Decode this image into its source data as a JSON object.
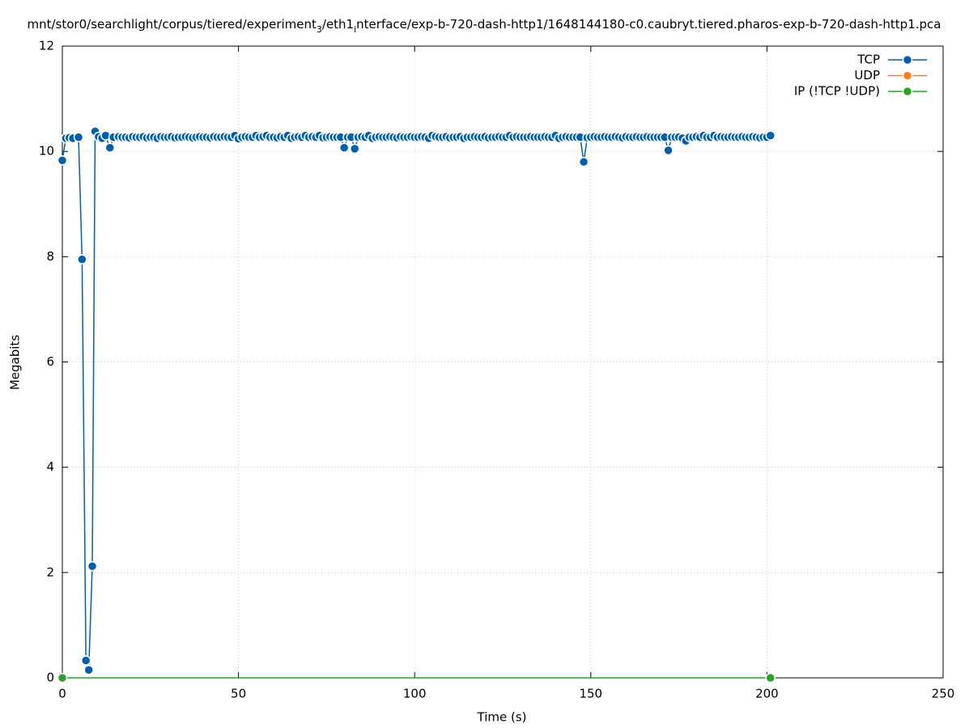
{
  "chart_data": {
    "type": "line",
    "title_parts": [
      "mnt/stor0/searchlight/corpus/tiered/experiment",
      "3",
      "/eth1",
      "i",
      "nterface/exp-b-720-dash-http1/1648144180-c0.caubryt.tiered.pharos-exp-b-720-dash-http1.pca"
    ],
    "xlabel": "Time (s)",
    "ylabel": "Megabits",
    "xlim": [
      0,
      250
    ],
    "xticks": [
      0,
      50,
      100,
      150,
      200,
      250
    ],
    "ylim": [
      0,
      12
    ],
    "yticks": [
      0,
      2,
      4,
      6,
      8,
      10,
      12
    ],
    "grid": true,
    "legend": "top-right",
    "series": [
      {
        "name": "TCP",
        "color": "#0060ad",
        "x": [
          0,
          1,
          2,
          3,
          4.6,
          5.6,
          6.7,
          7.5,
          8.5,
          9.3,
          10.3,
          11.3,
          12.3,
          13.5,
          14.5,
          16,
          17,
          18,
          19,
          20,
          21,
          22,
          23,
          24,
          25,
          26,
          27,
          28,
          29,
          30,
          31,
          32,
          33,
          34,
          35,
          36,
          37,
          38,
          39,
          40,
          41,
          42,
          43,
          44,
          45,
          46,
          47,
          48,
          49,
          50,
          51,
          52,
          53,
          54,
          55,
          56,
          57,
          58,
          59,
          60,
          61,
          62,
          63,
          64,
          65,
          66,
          67,
          68,
          69,
          70,
          71,
          72,
          73,
          74,
          75,
          76,
          77,
          78,
          79,
          80,
          81,
          82,
          83,
          84,
          85,
          86,
          87,
          88,
          89,
          90,
          91,
          92,
          93,
          94,
          95,
          96,
          97,
          98,
          99,
          100,
          101,
          102,
          103,
          104,
          105,
          106,
          107,
          108,
          109,
          110,
          111,
          112,
          113,
          114,
          115,
          116,
          117,
          118,
          119,
          120,
          121,
          122,
          123,
          124,
          125,
          126,
          127,
          128,
          129,
          130,
          131,
          132,
          133,
          134,
          135,
          136,
          137,
          138,
          139,
          140,
          141,
          142,
          143,
          144,
          145,
          146,
          147,
          148,
          149,
          150,
          151,
          152,
          153,
          154,
          155,
          156,
          157,
          158,
          159,
          160,
          161,
          162,
          163,
          164,
          165,
          166,
          167,
          168,
          169,
          170,
          171,
          172,
          173,
          174,
          175,
          176,
          177,
          178,
          179,
          180,
          181,
          182,
          183,
          184,
          185,
          186,
          187,
          188,
          189,
          190,
          191,
          192,
          193,
          194,
          195,
          196,
          197,
          198,
          199,
          200,
          201
        ],
        "values": [
          9.83,
          10.25,
          10.26,
          10.25,
          10.27,
          7.95,
          0.33,
          0.15,
          2.12,
          10.38,
          10.28,
          10.25,
          10.3,
          10.07,
          10.27,
          10.28,
          10.27,
          10.27,
          10.26,
          10.28,
          10.27,
          10.27,
          10.28,
          10.26,
          10.27,
          10.27,
          10.25,
          10.28,
          10.27,
          10.27,
          10.28,
          10.26,
          10.27,
          10.27,
          10.28,
          10.27,
          10.26,
          10.27,
          10.28,
          10.27,
          10.27,
          10.26,
          10.28,
          10.27,
          10.27,
          10.28,
          10.27,
          10.27,
          10.3,
          10.24,
          10.27,
          10.28,
          10.27,
          10.27,
          10.3,
          10.27,
          10.28,
          10.3,
          10.27,
          10.27,
          10.26,
          10.28,
          10.27,
          10.3,
          10.25,
          10.27,
          10.28,
          10.27,
          10.3,
          10.27,
          10.28,
          10.27,
          10.3,
          10.26,
          10.27,
          10.28,
          10.27,
          10.27,
          10.27,
          10.07,
          10.27,
          10.27,
          10.05,
          10.27,
          10.28,
          10.27,
          10.3,
          10.25,
          10.27,
          10.28,
          10.27,
          10.27,
          10.28,
          10.27,
          10.26,
          10.28,
          10.27,
          10.27,
          10.28,
          10.27,
          10.27,
          10.28,
          10.27,
          10.25,
          10.3,
          10.28,
          10.27,
          10.27,
          10.28,
          10.26,
          10.27,
          10.27,
          10.28,
          10.25,
          10.27,
          10.27,
          10.28,
          10.27,
          10.27,
          10.28,
          10.26,
          10.27,
          10.27,
          10.28,
          10.27,
          10.27,
          10.3,
          10.27,
          10.28,
          10.27,
          10.27,
          10.27,
          10.28,
          10.27,
          10.27,
          10.27,
          10.28,
          10.27,
          10.27,
          10.3,
          10.25,
          10.27,
          10.28,
          10.27,
          10.27,
          10.27,
          10.27,
          9.8,
          10.26,
          10.27,
          10.28,
          10.27,
          10.27,
          10.28,
          10.27,
          10.27,
          10.28,
          10.27,
          10.26,
          10.28,
          10.27,
          10.27,
          10.28,
          10.27,
          10.27,
          10.28,
          10.27,
          10.27,
          10.27,
          10.27,
          10.27,
          10.02,
          10.27,
          10.27,
          10.27,
          10.25,
          10.2,
          10.27,
          10.27,
          10.28,
          10.27,
          10.3,
          10.27,
          10.27,
          10.3,
          10.27,
          10.28,
          10.27,
          10.27,
          10.28,
          10.27,
          10.27,
          10.28,
          10.27,
          10.27,
          10.28,
          10.27,
          10.26,
          10.27,
          10.27,
          10.3
        ]
      },
      {
        "name": "UDP",
        "color": "#ff7f0e",
        "x": [],
        "values": []
      },
      {
        "name": "IP (!TCP  !UDP)",
        "color": "#2ca02c",
        "x": [
          0,
          201
        ],
        "values": [
          0,
          0
        ]
      }
    ]
  }
}
